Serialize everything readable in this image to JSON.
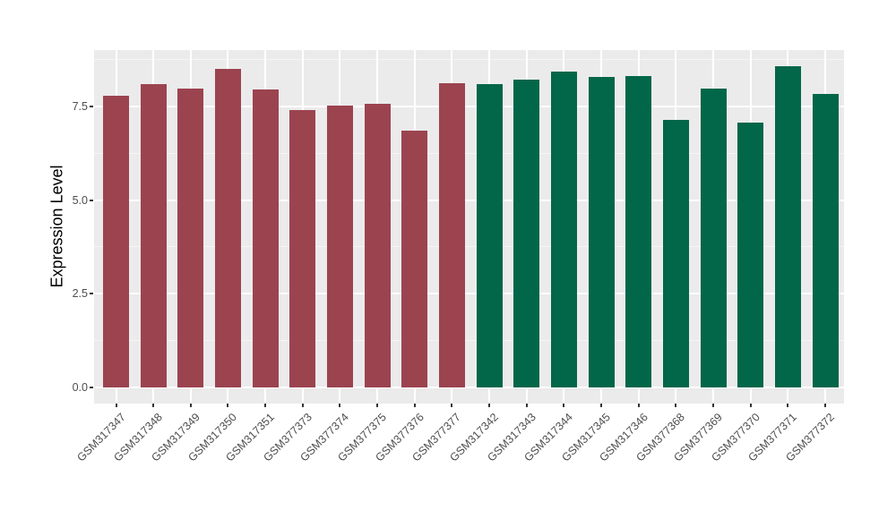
{
  "chart_data": {
    "type": "bar",
    "title": "",
    "xlabel": "",
    "ylabel": "Expression Level",
    "categories": [
      "GSM317347",
      "GSM317348",
      "GSM317349",
      "GSM317350",
      "GSM317351",
      "GSM377373",
      "GSM377374",
      "GSM377375",
      "GSM377376",
      "GSM377377",
      "GSM317342",
      "GSM317343",
      "GSM317344",
      "GSM317345",
      "GSM317346",
      "GSM377368",
      "GSM377369",
      "GSM377370",
      "GSM377371",
      "GSM377372"
    ],
    "values": [
      7.79,
      8.1,
      7.98,
      8.49,
      7.95,
      7.4,
      7.53,
      7.57,
      6.85,
      8.11,
      8.09,
      8.22,
      8.43,
      8.29,
      8.31,
      7.14,
      7.97,
      7.06,
      8.58,
      7.82
    ],
    "group_of_bar": [
      "A",
      "A",
      "A",
      "A",
      "A",
      "A",
      "A",
      "A",
      "A",
      "A",
      "B",
      "B",
      "B",
      "B",
      "B",
      "B",
      "B",
      "B",
      "B",
      "B"
    ],
    "group_colors": {
      "A": "#9c4350",
      "B": "#026649"
    },
    "ylim": [
      0,
      9.0
    ],
    "ytick_values": [
      0,
      2.5,
      5.0,
      7.5
    ],
    "ytick_labels": [
      "0.0",
      "2.5",
      "5.0",
      "7.5"
    ],
    "minor_tick_values": [
      1.25,
      3.75,
      6.25,
      8.75
    ],
    "grid": "on",
    "legend": "none",
    "x_label_angle_deg": 45,
    "colors": {
      "panel_background": "#ebebeb",
      "major_gridline": "#ffffff",
      "minor_gridline": "#f6f6f6",
      "tick_mark": "#333333",
      "axis_text": "#4d4d4d",
      "axis_title": "#000000",
      "figure_background": "#ffffff"
    }
  }
}
